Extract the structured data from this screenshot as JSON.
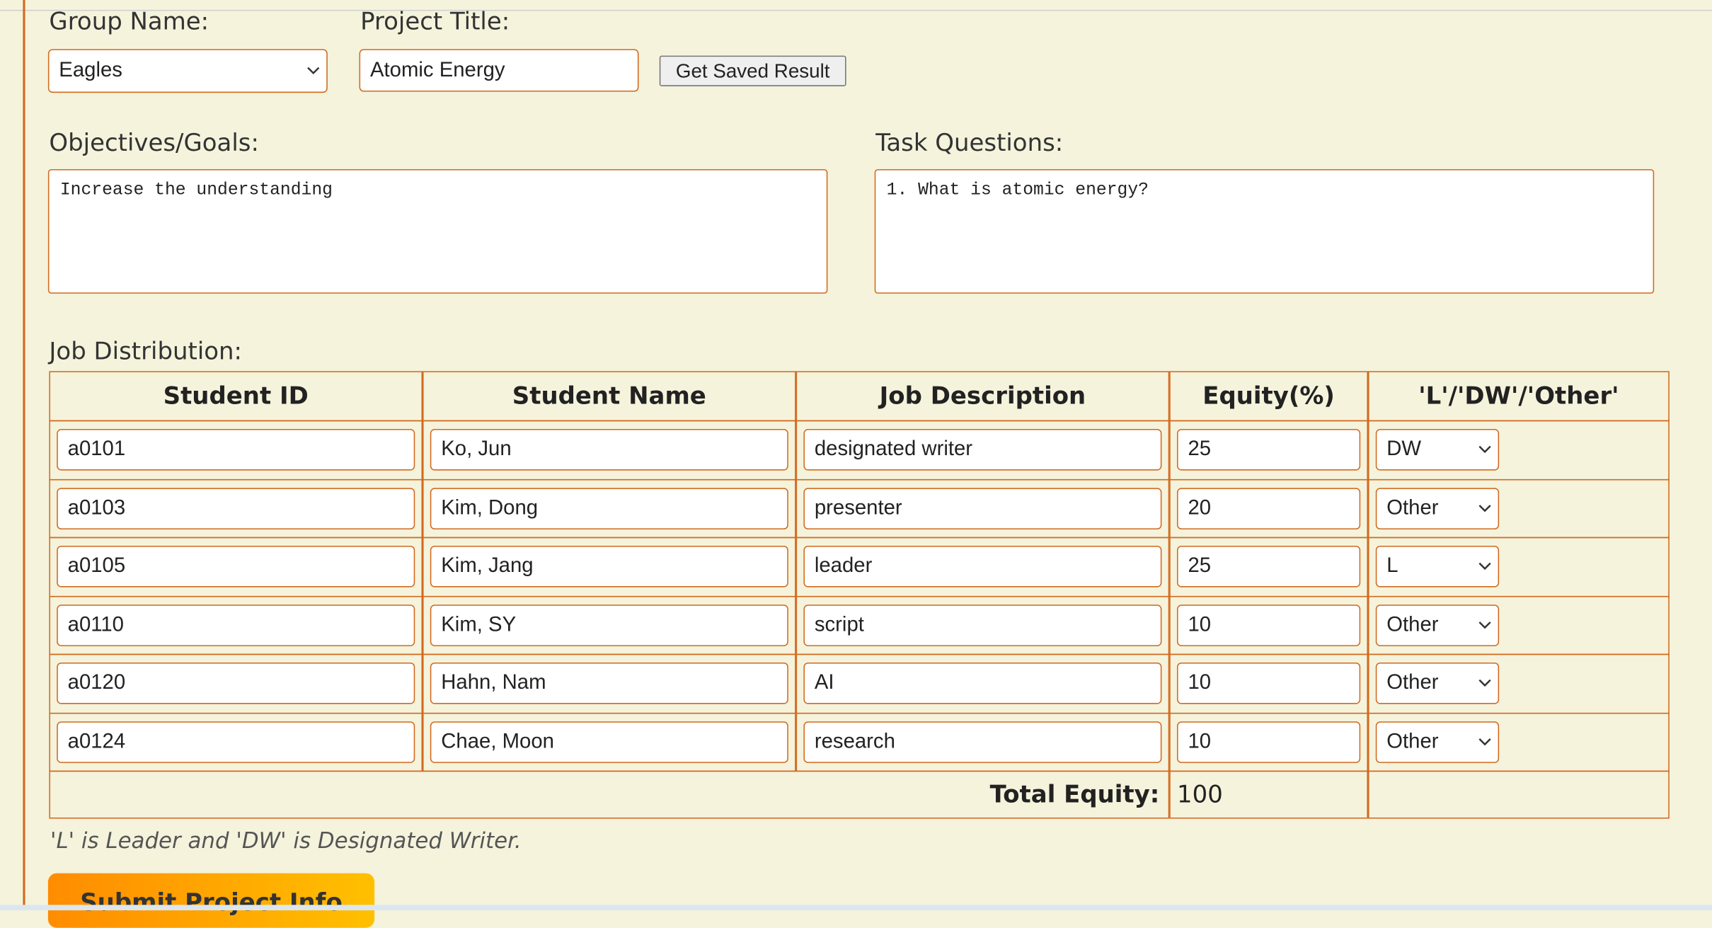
{
  "form": {
    "group_name_label": "Group Name:",
    "group_name": "Eagles",
    "project_title_label": "Project Title:",
    "project_title": "Atomic Energy",
    "get_saved_button": "Get Saved Result",
    "objectives_label": "Objectives/Goals:",
    "objectives": "Increase the understanding",
    "task_questions_label": "Task Questions:",
    "task_questions": "1. What is atomic energy?"
  },
  "job_distribution": {
    "label": "Job Distribution:",
    "columns": [
      "Student ID",
      "Student Name",
      "Job Description",
      "Equity(%)",
      "'L'/'DW'/'Other'"
    ],
    "rows": [
      [
        "a0101",
        "Ko, Jun",
        "designated writer",
        25,
        "DW"
      ],
      [
        "a0103",
        "Kim, Dong",
        "presenter",
        20,
        "Other"
      ],
      [
        "a0105",
        "Kim, Jang",
        "leader",
        25,
        "L"
      ],
      [
        "a0110",
        "Kim, SY",
        "script",
        10,
        "Other"
      ],
      [
        "a0120",
        "Hahn, Nam",
        "AI",
        10,
        "Other"
      ],
      [
        "a0124",
        "Chae, Moon",
        "research",
        10,
        "Other"
      ]
    ],
    "total_label": "Total Equity:",
    "total": 100
  },
  "note": "'L' is Leader and 'DW' is Designated Writer.",
  "submit_button": "Submit Project Info"
}
